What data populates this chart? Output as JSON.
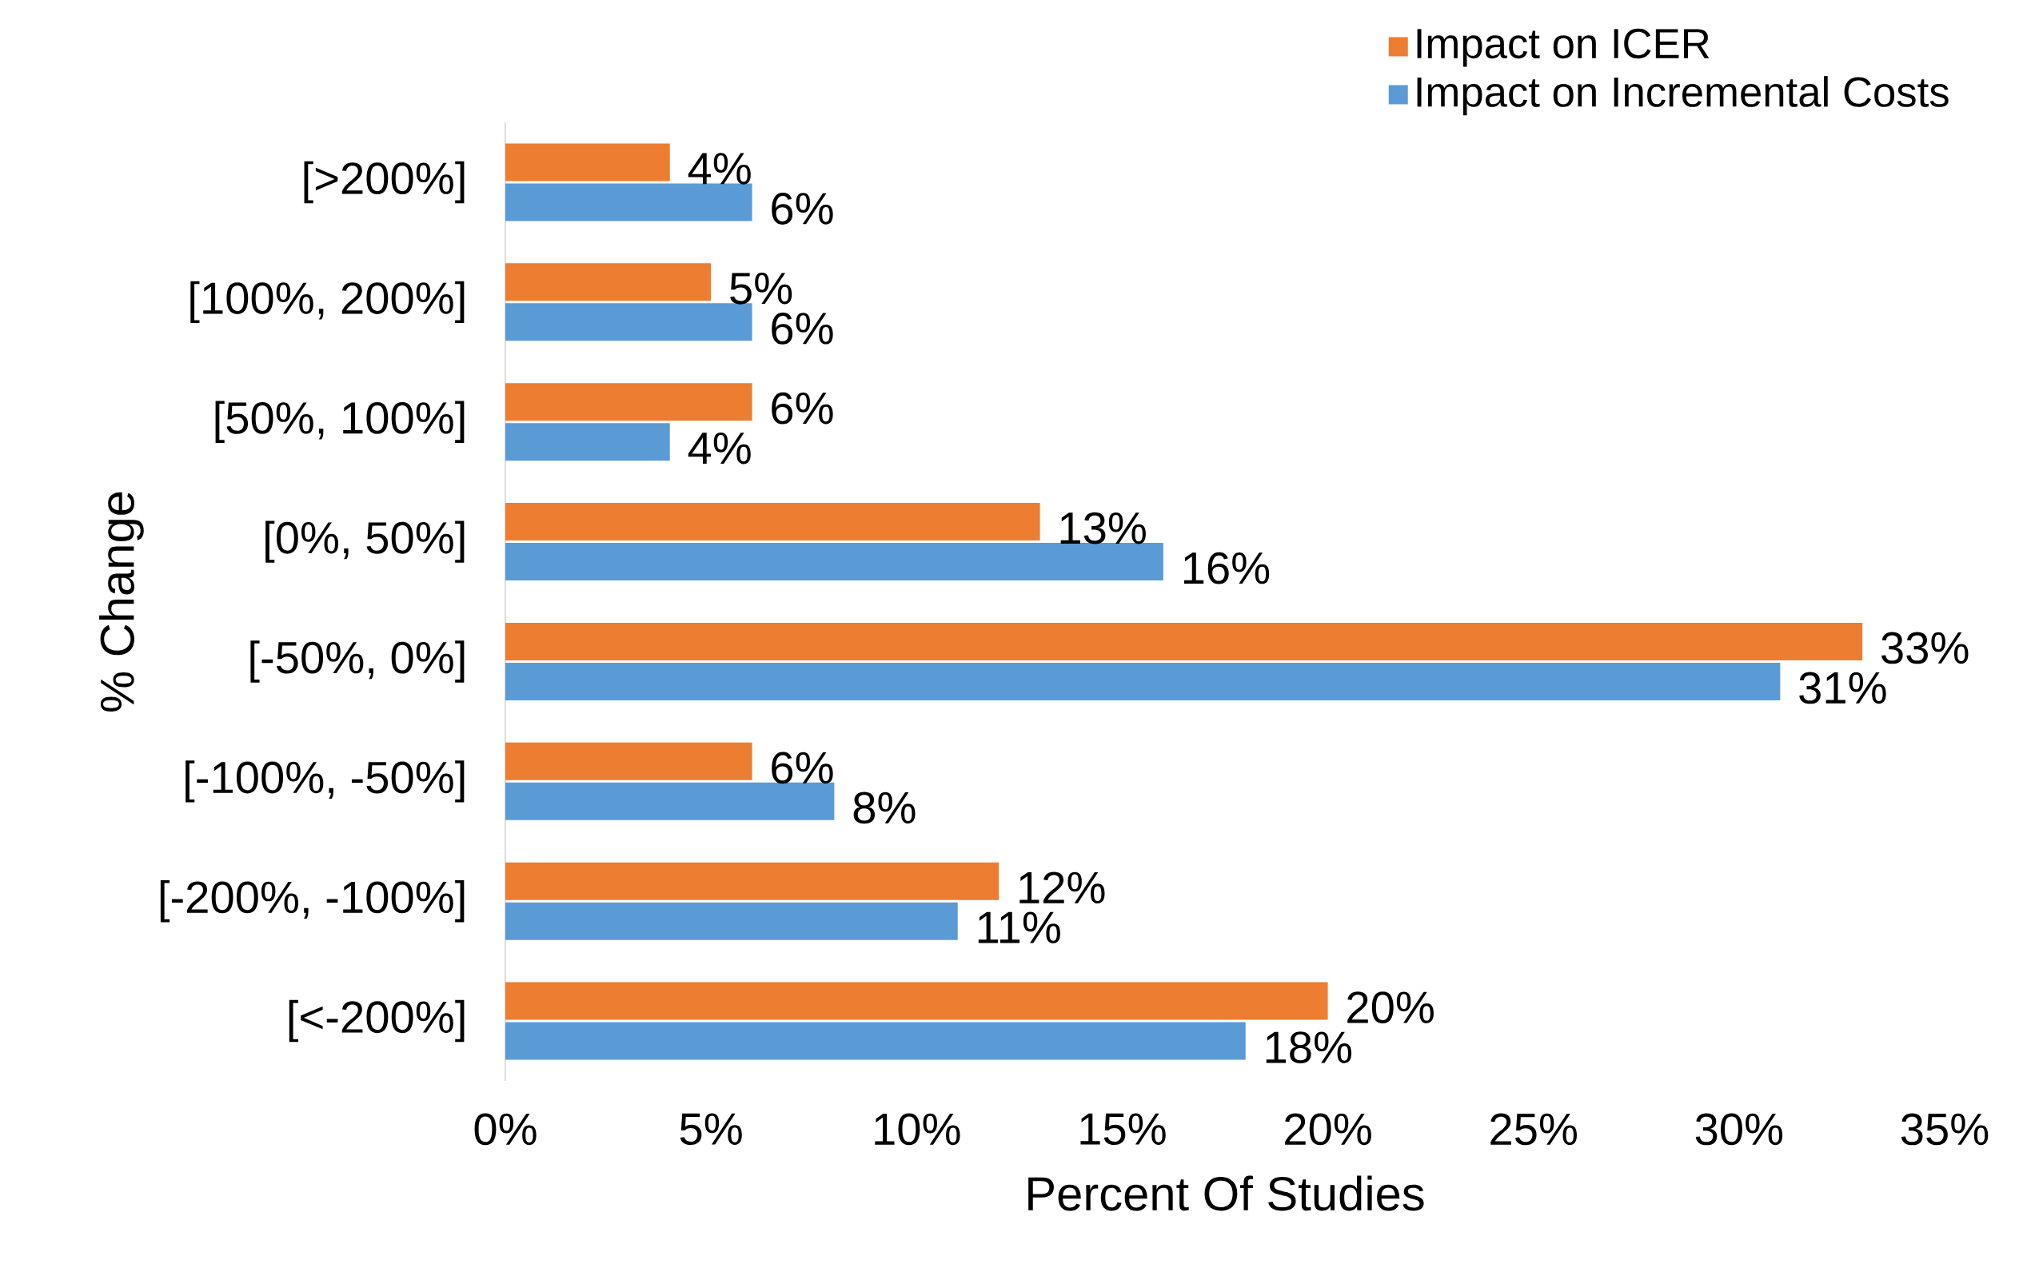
{
  "chart_data": {
    "type": "bar",
    "orientation": "horizontal",
    "xlabel": "Percent Of Studies",
    "ylabel": "% Change",
    "categories": [
      "[>200%]",
      "[100%, 200%]",
      "[50%, 100%]",
      "[0%, 50%]",
      "[-50%, 0%]",
      "[-100%, -50%]",
      "[-200%, -100%]",
      "[<-200%]"
    ],
    "series": [
      {
        "name": "Impact on ICER",
        "color": "#ed7d31",
        "values": [
          4,
          5,
          6,
          13,
          33,
          6,
          12,
          20
        ],
        "value_labels": [
          "4%",
          "5%",
          "6%",
          "13%",
          "33%",
          "6%",
          "12%",
          "20%"
        ]
      },
      {
        "name": "Impact on Incremental Costs",
        "color": "#5b9bd5",
        "values": [
          6,
          6,
          4,
          16,
          31,
          8,
          11,
          18
        ],
        "value_labels": [
          "6%",
          "6%",
          "4%",
          "16%",
          "31%",
          "8%",
          "11%",
          "18%"
        ]
      }
    ],
    "xlim": [
      0,
      35
    ],
    "xticks": [
      {
        "value": 0,
        "label": "0%"
      },
      {
        "value": 5,
        "label": "5%"
      },
      {
        "value": 10,
        "label": "10%"
      },
      {
        "value": 15,
        "label": "15%"
      },
      {
        "value": 20,
        "label": "20%"
      },
      {
        "value": 25,
        "label": "25%"
      },
      {
        "value": 30,
        "label": "30%"
      },
      {
        "value": 35,
        "label": "35%"
      }
    ],
    "legend": "top right",
    "grid": false
  }
}
